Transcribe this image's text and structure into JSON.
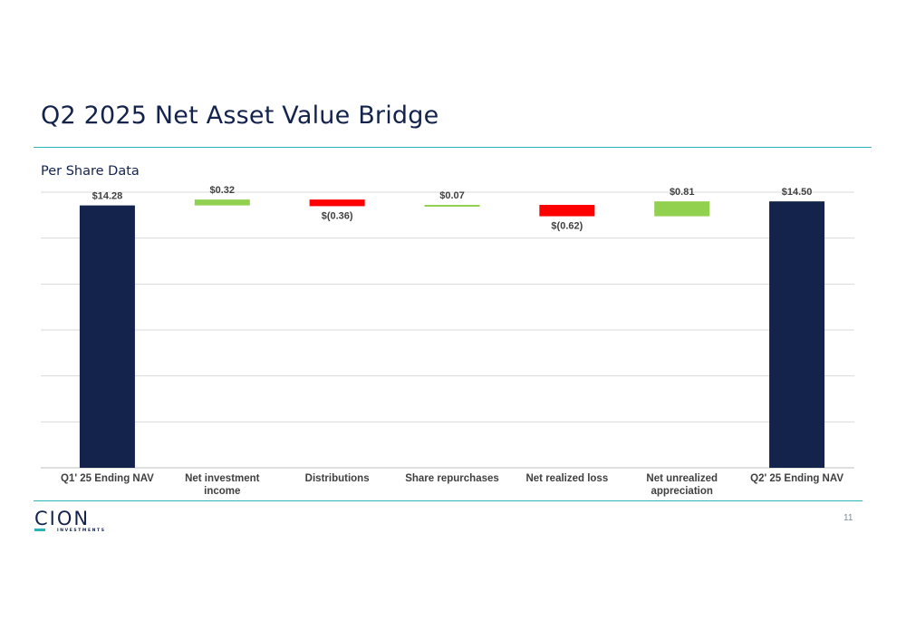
{
  "slide": {
    "title": "Q2 2025 Net Asset Value Bridge",
    "subtitle": "Per Share Data",
    "page_number": "11",
    "logo_text": "CION",
    "logo_subtext": "INVESTMENTS"
  },
  "colors": {
    "navy": "#13234b",
    "increase": "#92d050",
    "decrease": "#ff0000",
    "teal": "#2bb3b8",
    "gridline": "#d9d9d9"
  },
  "chart_data": {
    "type": "bar",
    "subtype": "waterfall",
    "title": "",
    "xlabel": "",
    "ylabel": "",
    "ylim": [
      0,
      15
    ],
    "grid": true,
    "legend": "none",
    "categories": [
      "Q1' 25 Ending NAV",
      "Net investment income",
      "Distributions",
      "Share repurchases",
      "Net realized loss",
      "Net unrealized appreciation",
      "Q2' 25 Ending NAV"
    ],
    "category_lines": [
      [
        "Q1' 25 Ending NAV"
      ],
      [
        "Net investment",
        "income"
      ],
      [
        "Distributions"
      ],
      [
        "Share repurchases"
      ],
      [
        "Net realized loss"
      ],
      [
        "Net unrealized",
        "appreciation"
      ],
      [
        "Q2' 25 Ending NAV"
      ]
    ],
    "values": [
      14.28,
      0.32,
      -0.36,
      0.07,
      -0.62,
      0.81,
      14.5
    ],
    "kinds": [
      "total",
      "increase",
      "decrease",
      "increase",
      "decrease",
      "increase",
      "total"
    ],
    "labels": [
      "$14.28",
      "$0.32",
      "$(0.36)",
      "$0.07",
      "$(0.62)",
      "$0.81",
      "$14.50"
    ]
  }
}
